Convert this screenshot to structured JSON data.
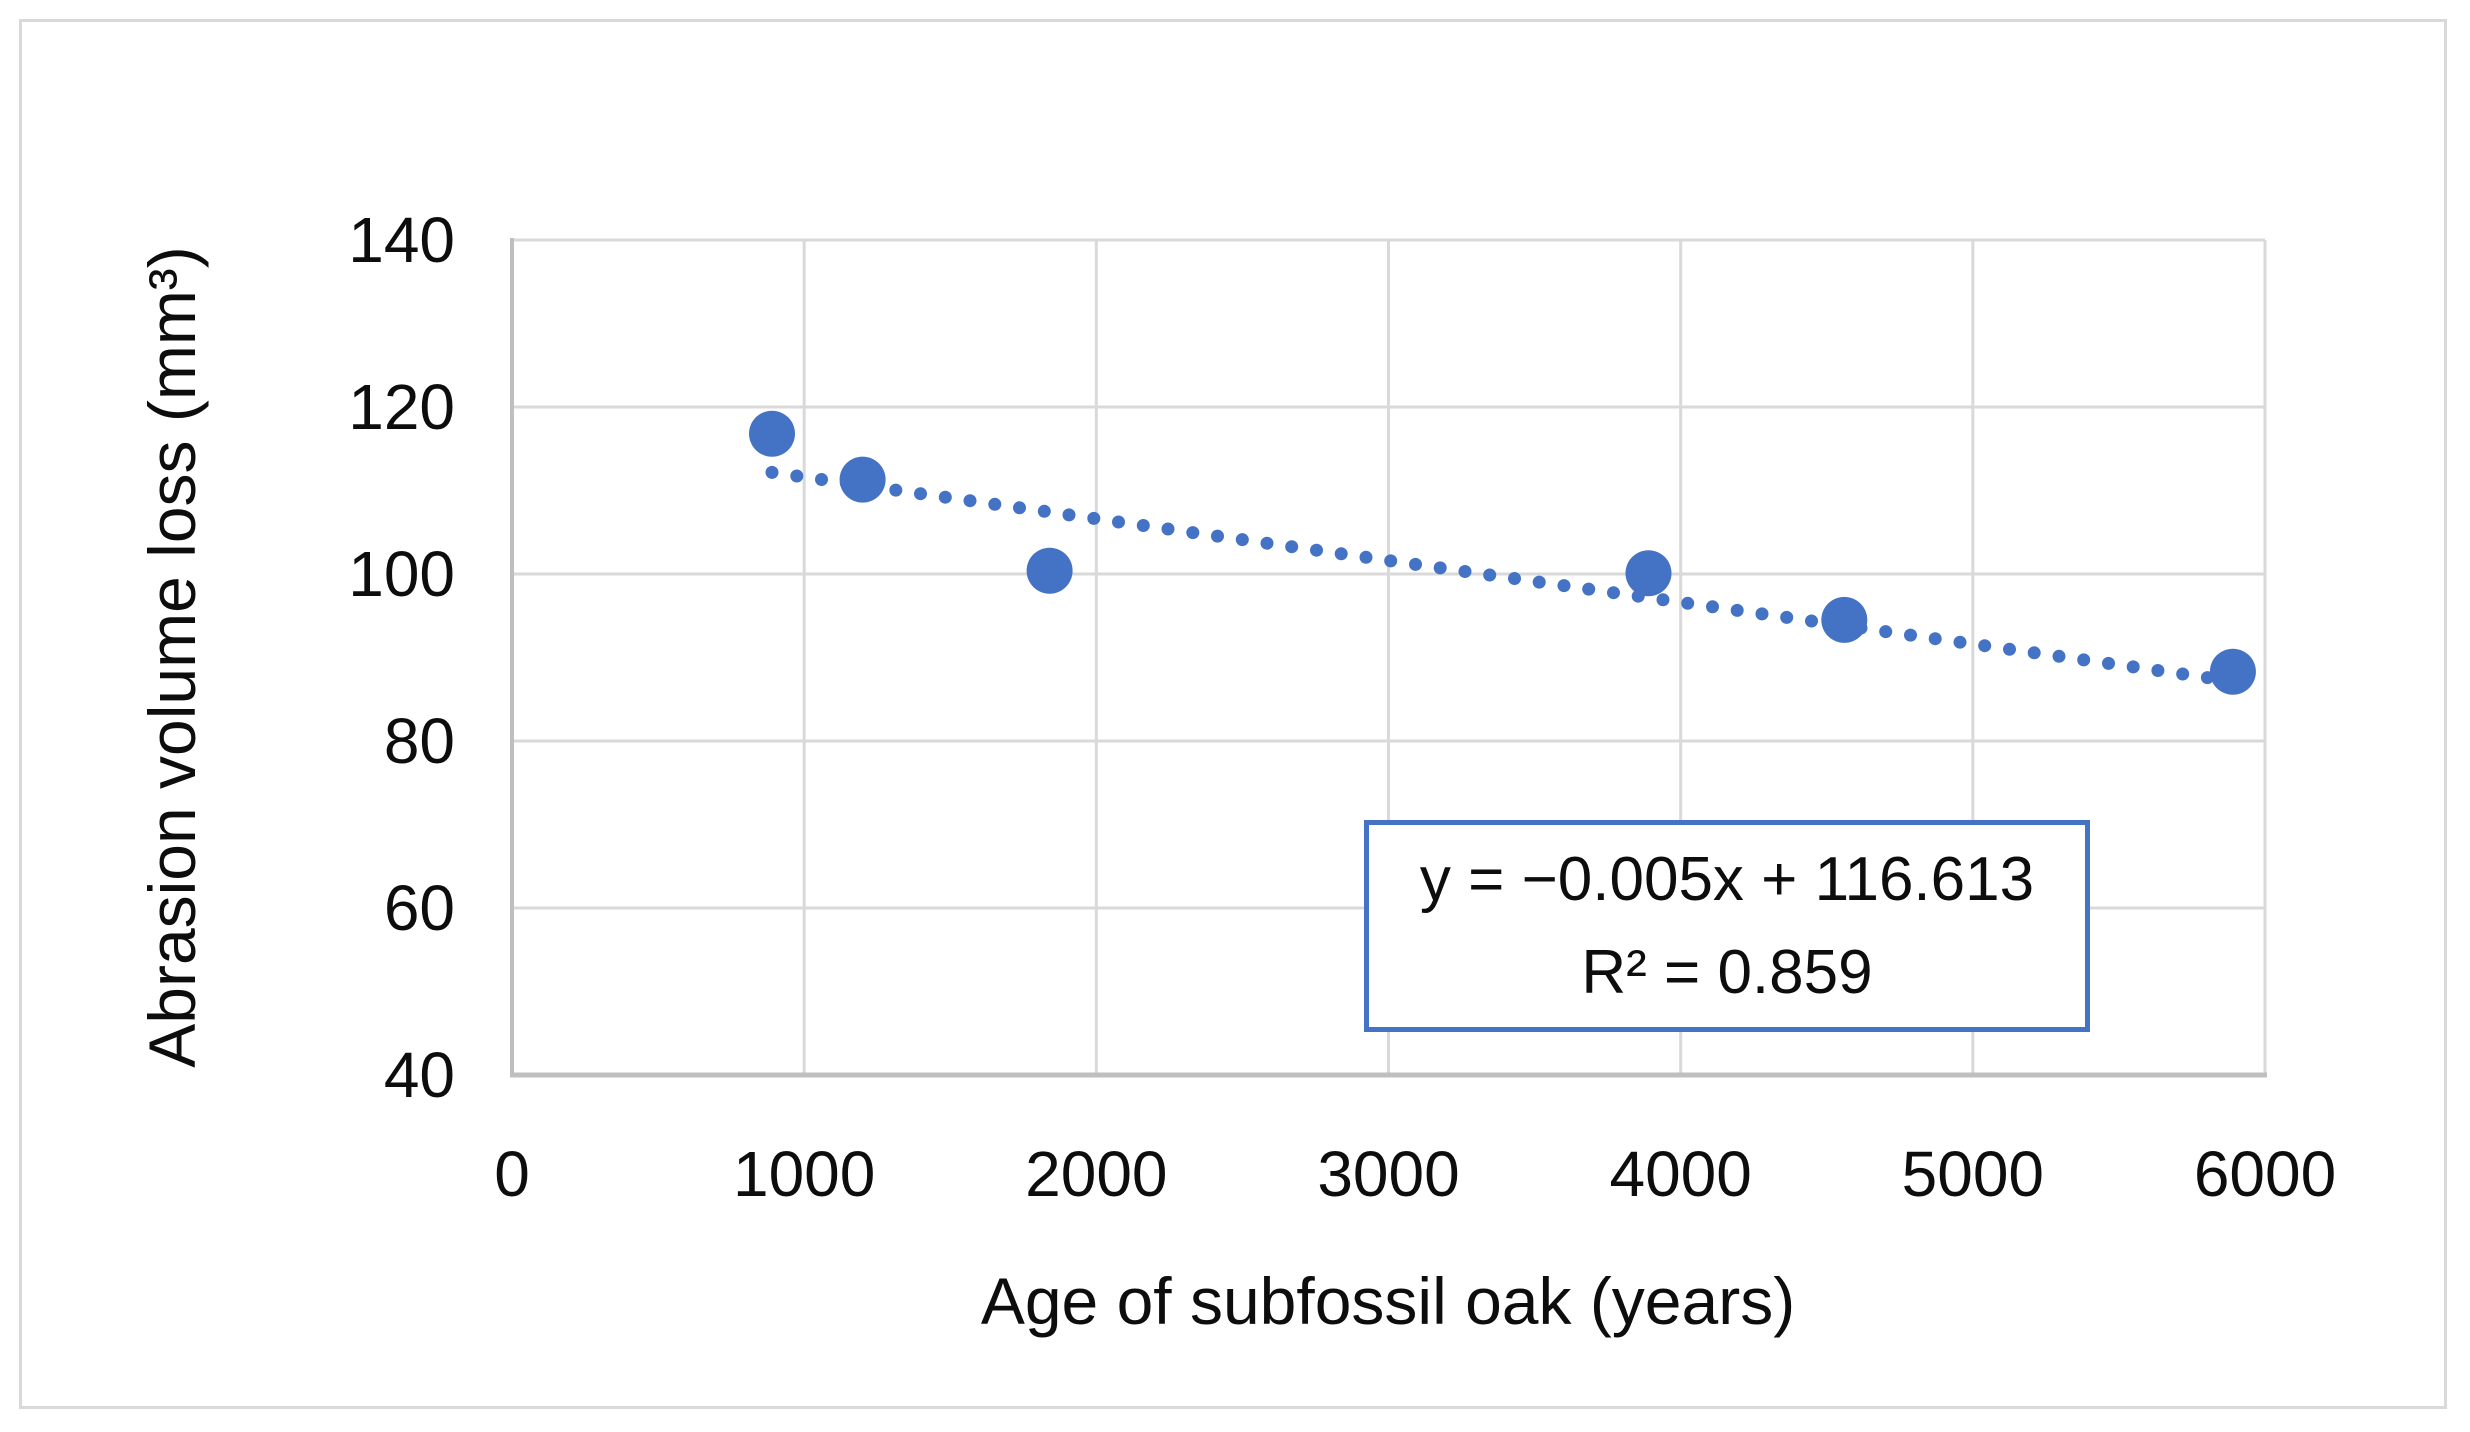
{
  "figure": {
    "background": "#ffffff",
    "border_color": "#D9D9D9"
  },
  "chart_data": {
    "type": "scatter",
    "title": "",
    "xlabel": "Age of subfossil oak (years)",
    "ylabel": "Abrasion volume loss (mm³)",
    "x_ticks": [
      0,
      1000,
      2000,
      3000,
      4000,
      5000,
      6000
    ],
    "y_ticks": [
      40,
      60,
      80,
      100,
      120,
      140
    ],
    "xlim": [
      0,
      6000
    ],
    "ylim": [
      40,
      140
    ],
    "grid": true,
    "gridline_color": "#D9D9D9",
    "axis_color": "#BFBFBF",
    "marker_color": "#4472C4",
    "points": [
      {
        "x": 890,
        "y": 116.8
      },
      {
        "x": 1200,
        "y": 111.3
      },
      {
        "x": 1840,
        "y": 100.4
      },
      {
        "x": 3890,
        "y": 100.1
      },
      {
        "x": 4560,
        "y": 94.5
      },
      {
        "x": 5890,
        "y": 88.3
      }
    ],
    "trendline": {
      "slope": -0.005,
      "intercept": 116.613,
      "x_start": 890,
      "x_end": 5915,
      "style": "dotted",
      "color": "#4472C4",
      "equation_label": "y = −0.005x + 116.613",
      "r_squared_label": "R² = 0.859"
    }
  }
}
